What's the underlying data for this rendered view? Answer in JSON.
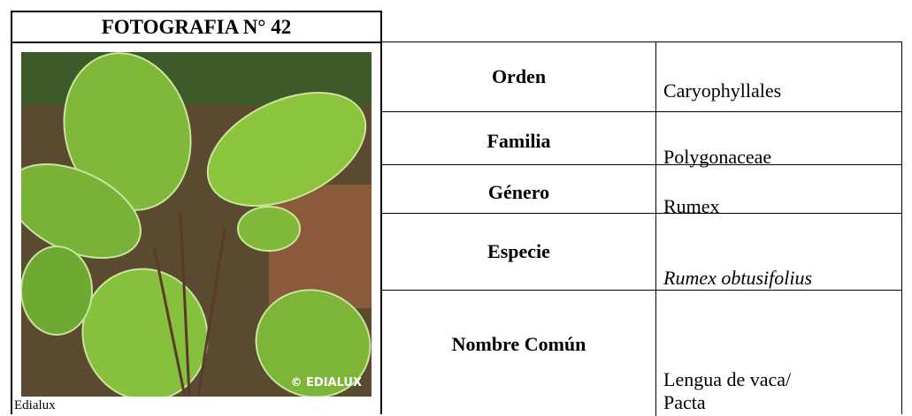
{
  "header": {
    "title": "FOTOGRAFIA N° 42"
  },
  "photo": {
    "caption": "Edialux",
    "watermark": "© EDIALUX"
  },
  "table": {
    "rows": [
      [
        "Orden",
        "Caryophyllales"
      ],
      [
        "Familia",
        "Polygonaceae"
      ],
      [
        "Género",
        "Rumex"
      ],
      [
        "Especie",
        "Rumex obtusifolius"
      ],
      [
        "Nombre Común",
        [
          "Lengua de vaca/",
          "Pacta"
        ]
      ]
    ]
  }
}
